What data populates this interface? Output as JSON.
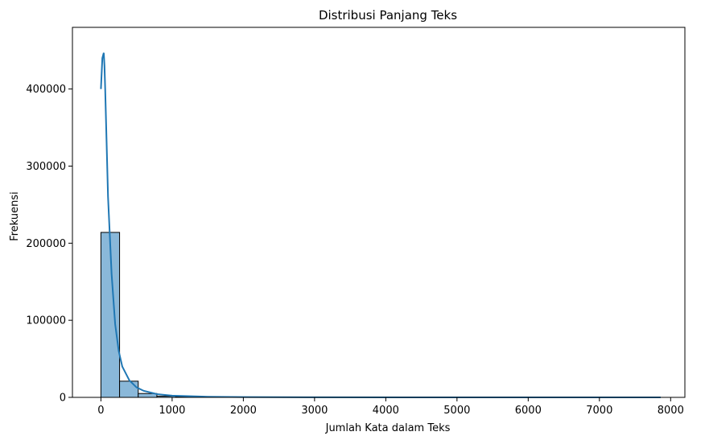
{
  "chart_data": {
    "type": "bar",
    "title": "Distribusi Panjang Teks",
    "xlabel": "Jumlah Kata dalam Teks",
    "ylabel": "Frekuensi",
    "xlim": [
      -400,
      8200
    ],
    "ylim": [
      0,
      480000
    ],
    "x_ticks": [
      0,
      1000,
      2000,
      3000,
      4000,
      5000,
      6000,
      7000,
      8000
    ],
    "y_ticks": [
      0,
      100000,
      200000,
      300000,
      400000
    ],
    "grid": false,
    "bar_color": "#8ab8d9",
    "bar_edge_color": "#000000",
    "bins": [
      {
        "x0": 0,
        "x1": 262,
        "value": 214000
      },
      {
        "x0": 262,
        "x1": 524,
        "value": 21000
      },
      {
        "x0": 524,
        "x1": 786,
        "value": 5000
      },
      {
        "x0": 786,
        "x1": 1048,
        "value": 1500
      },
      {
        "x0": 1048,
        "x1": 1310,
        "value": 600
      },
      {
        "x0": 1310,
        "x1": 1572,
        "value": 300
      },
      {
        "x0": 1572,
        "x1": 1834,
        "value": 150
      },
      {
        "x0": 1834,
        "x1": 2096,
        "value": 80
      },
      {
        "x0": 2096,
        "x1": 2358,
        "value": 50
      },
      {
        "x0": 2358,
        "x1": 2620,
        "value": 30
      },
      {
        "x0": 2620,
        "x1": 2882,
        "value": 20
      },
      {
        "x0": 2882,
        "x1": 3144,
        "value": 15
      },
      {
        "x0": 3144,
        "x1": 3406,
        "value": 10
      },
      {
        "x0": 3406,
        "x1": 3668,
        "value": 8
      },
      {
        "x0": 3668,
        "x1": 3930,
        "value": 6
      },
      {
        "x0": 3930,
        "x1": 4192,
        "value": 5
      },
      {
        "x0": 4192,
        "x1": 4454,
        "value": 4
      },
      {
        "x0": 4454,
        "x1": 4716,
        "value": 3
      },
      {
        "x0": 4716,
        "x1": 4978,
        "value": 3
      },
      {
        "x0": 4978,
        "x1": 5240,
        "value": 2
      },
      {
        "x0": 5240,
        "x1": 5502,
        "value": 2
      },
      {
        "x0": 5502,
        "x1": 5764,
        "value": 1
      },
      {
        "x0": 5764,
        "x1": 6026,
        "value": 1
      },
      {
        "x0": 6026,
        "x1": 6288,
        "value": 1
      },
      {
        "x0": 6288,
        "x1": 6550,
        "value": 1
      },
      {
        "x0": 6550,
        "x1": 6812,
        "value": 1
      },
      {
        "x0": 6812,
        "x1": 7074,
        "value": 1
      },
      {
        "x0": 7074,
        "x1": 7336,
        "value": 1
      },
      {
        "x0": 7336,
        "x1": 7598,
        "value": 1
      },
      {
        "x0": 7598,
        "x1": 7860,
        "value": 1
      }
    ],
    "kde": {
      "color": "#1f77b4",
      "x": [
        0,
        20,
        40,
        50,
        60,
        80,
        100,
        150,
        200,
        250,
        300,
        400,
        500,
        600,
        800,
        1000,
        1500,
        2000,
        3000,
        5000,
        7860
      ],
      "y": [
        400000,
        440000,
        447000,
        430000,
        400000,
        330000,
        260000,
        160000,
        95000,
        60000,
        40000,
        22000,
        13000,
        8500,
        4000,
        2200,
        800,
        350,
        100,
        20,
        5
      ]
    }
  }
}
